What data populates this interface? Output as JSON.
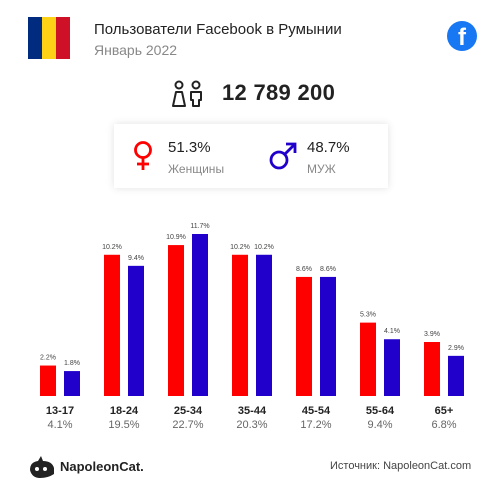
{
  "header": {
    "title": "Пользователи Facebook в Румынии",
    "subtitle": "Январь 2022",
    "flag_colors": [
      "#002b7f",
      "#fcd116",
      "#ce1126"
    ],
    "facebook_icon": "facebook-icon",
    "facebook_letter": "f"
  },
  "total": {
    "icon": "people-icon",
    "value": "12 789 200"
  },
  "gender": {
    "female": {
      "icon": "female-icon",
      "pct": "51.3%",
      "label": "Женщины",
      "color": "#ff0000"
    },
    "male": {
      "icon": "male-icon",
      "pct": "48.7%",
      "label": "МУЖ",
      "color": "#2200cc"
    }
  },
  "chart_data": {
    "type": "bar",
    "categories": [
      "13-17",
      "18-24",
      "25-34",
      "35-44",
      "45-54",
      "55-64",
      "65+"
    ],
    "category_totals": [
      "4.1%",
      "19.5%",
      "22.7%",
      "20.3%",
      "17.2%",
      "9.4%",
      "6.8%"
    ],
    "series": [
      {
        "values": [
          2.2,
          10.2,
          10.9,
          10.2,
          8.6,
          5.3,
          3.9
        ],
        "labels": [
          "2.2%",
          "10.2%",
          "10.9%",
          "10.2%",
          "8.6%",
          "5.3%",
          "3.9%"
        ],
        "color": "#ff0000"
      },
      {
        "values": [
          1.8,
          9.4,
          11.7,
          10.2,
          8.6,
          4.1,
          2.9
        ],
        "labels": [
          "1.8%",
          "9.4%",
          "11.7%",
          "10.2%",
          "8.6%",
          "4.1%",
          "2.9%"
        ],
        "color": "#2200cc"
      }
    ],
    "ylim": [
      0,
      11.7
    ],
    "grid": false
  },
  "footer": {
    "logo_icon": "napoleoncat-logo-icon",
    "brand": "NapoleonCat.",
    "source": "Источник: NapoleonCat.com"
  }
}
